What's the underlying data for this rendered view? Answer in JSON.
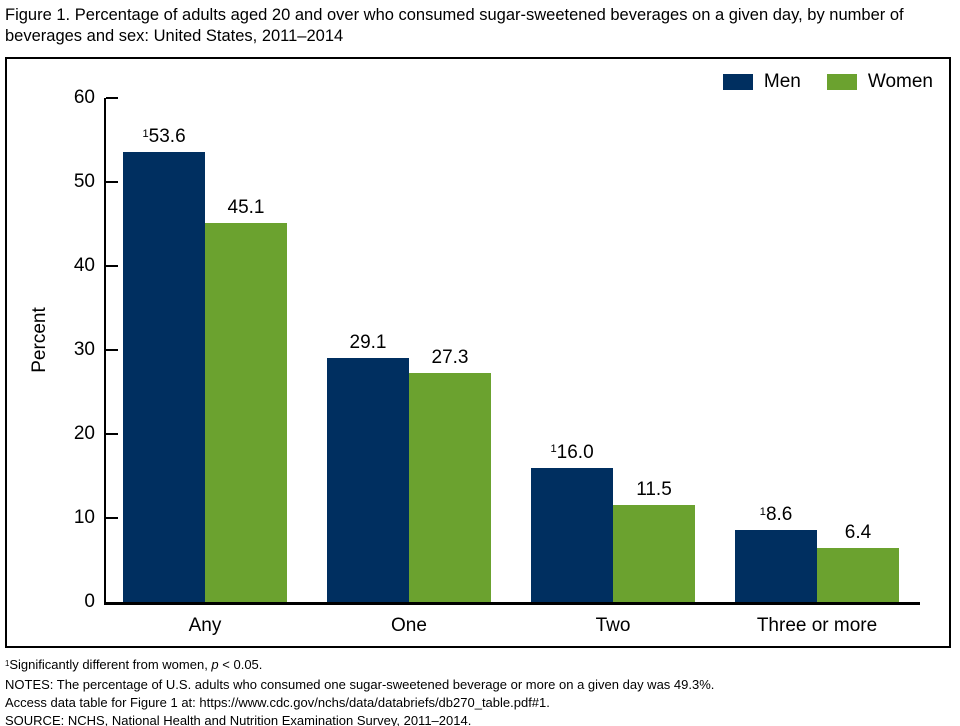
{
  "page": {
    "title": "Figure 1. Percentage of adults aged 20 and over who consumed sugar-sweetened beverages on a given day, by number of beverages and sex: United States, 2011–2014"
  },
  "chart_data": {
    "type": "bar",
    "title": "Figure 1. Percentage of adults aged 20 and over who consumed sugar-sweetened beverages on a given day, by number of beverages and sex: United States, 2011–2014",
    "categories": [
      "Any",
      "One",
      "Two",
      "Three or more"
    ],
    "series": [
      {
        "name": "Men",
        "color": "#002f60",
        "values": [
          53.6,
          29.1,
          16.0,
          8.6
        ],
        "labels": [
          "53.6",
          "29.1",
          "16.0",
          "8.6"
        ],
        "significant": [
          true,
          false,
          true,
          true
        ]
      },
      {
        "name": "Women",
        "color": "#6ba22f",
        "values": [
          45.1,
          27.3,
          11.5,
          6.4
        ],
        "labels": [
          "45.1",
          "27.3",
          "11.5",
          "6.4"
        ],
        "significant": [
          false,
          false,
          false,
          false
        ]
      }
    ],
    "sig_marker": "1",
    "xlabel": "",
    "ylabel": "Percent",
    "ylim": [
      0,
      60
    ],
    "yticks": [
      0,
      10,
      20,
      30,
      40,
      50,
      60
    ],
    "grid": false,
    "legend_position": "top-right"
  },
  "footnotes": {
    "sig_sup": "1",
    "sig_text": "Significantly different from women, ",
    "sig_var": "p",
    "sig_rest": " < 0.05.",
    "notes": "NOTES: The percentage of U.S. adults who consumed one sugar-sweetened beverage or more on a given day was 49.3%.",
    "access": "Access data table for Figure 1 at: https://www.cdc.gov/nchs/data/databriefs/db270_table.pdf#1.",
    "source": "SOURCE: NCHS, National Health and Nutrition Examination Survey, 2011–2014."
  }
}
